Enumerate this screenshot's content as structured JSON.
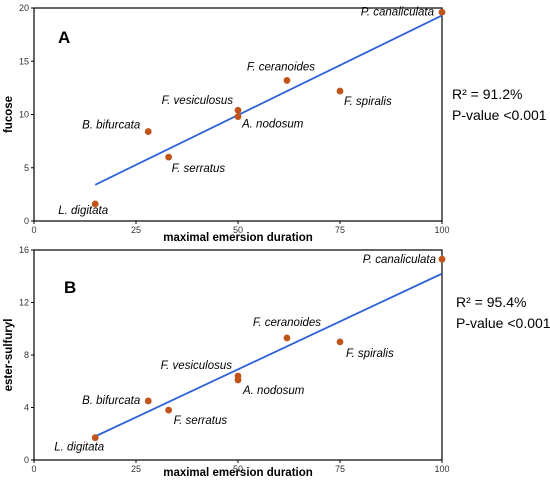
{
  "chart_data": [
    {
      "type": "scatter",
      "panel": "A",
      "xlabel": "maximal emersion duration",
      "ylabel": "fucose",
      "xlim": [
        0,
        100
      ],
      "ylim": [
        0,
        20
      ],
      "xticks": [
        "0",
        "25",
        "50",
        "75",
        "100"
      ],
      "yticks": [
        "0",
        "5",
        "10",
        "15",
        "20"
      ],
      "points": [
        {
          "label": "P. canaliculata",
          "x": 100,
          "y": 19.6
        },
        {
          "label": "F. ceranoides",
          "x": 62,
          "y": 13.2
        },
        {
          "label": "F. spiralis",
          "x": 75,
          "y": 12.2
        },
        {
          "label": "F. vesiculosus",
          "x": 50,
          "y": 10.4
        },
        {
          "label": "A. nodosum",
          "x": 50,
          "y": 9.8
        },
        {
          "label": "B. bifurcata",
          "x": 28,
          "y": 8.4
        },
        {
          "label": "F. serratus",
          "x": 33,
          "y": 6.0
        },
        {
          "label": "L. digitata",
          "x": 15,
          "y": 1.6
        }
      ],
      "fit_line": {
        "x": [
          15,
          100
        ],
        "y": [
          3.4,
          19.3
        ]
      },
      "stats": {
        "r2": "R² = 91.2%",
        "pvalue": "P-value <0.001"
      }
    },
    {
      "type": "scatter",
      "panel": "B",
      "xlabel": "maximal emersion duration",
      "ylabel": "ester-sulfuryl",
      "xlim": [
        0,
        100
      ],
      "ylim": [
        0,
        16
      ],
      "xticks": [
        "0",
        "25",
        "50",
        "75",
        "100"
      ],
      "yticks": [
        "0",
        "4",
        "8",
        "12",
        "16"
      ],
      "points": [
        {
          "label": "P. canaliculata",
          "x": 100,
          "y": 15.3
        },
        {
          "label": "F. ceranoides",
          "x": 62,
          "y": 9.3
        },
        {
          "label": "F. spiralis",
          "x": 75,
          "y": 9.0
        },
        {
          "label": "F. vesiculosus",
          "x": 50,
          "y": 6.4
        },
        {
          "label": "A. nodosum",
          "x": 50,
          "y": 6.1
        },
        {
          "label": "B. bifurcata",
          "x": 28,
          "y": 4.5
        },
        {
          "label": "F. serratus",
          "x": 33,
          "y": 3.8
        },
        {
          "label": "L. digitata",
          "x": 15,
          "y": 1.7
        }
      ],
      "fit_line": {
        "x": [
          15,
          100
        ],
        "y": [
          1.8,
          14.2
        ]
      },
      "stats": {
        "r2": "R² = 95.4%",
        "pvalue": "P-value <0.001"
      }
    }
  ]
}
